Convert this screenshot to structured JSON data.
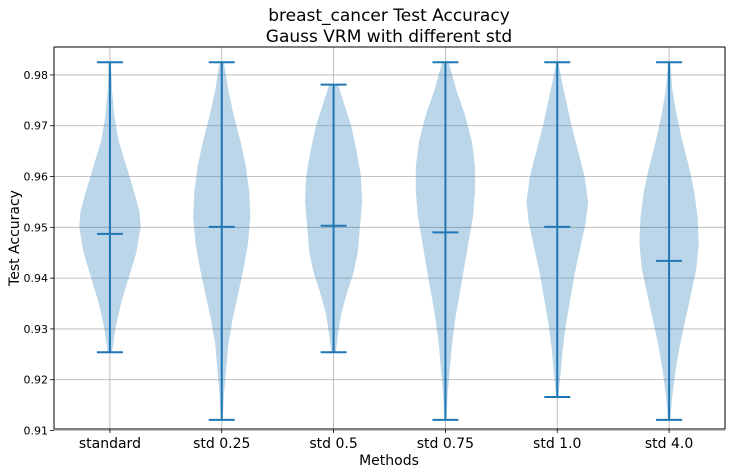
{
  "chart_data": {
    "type": "violin",
    "title": "breast_cancer Test Accuracy",
    "subtitle": "Gauss VRM with different std",
    "xlabel": "Methods",
    "ylabel": "Test Accuracy",
    "ylim": [
      0.9103,
      0.9855
    ],
    "yticks": [
      "0.91",
      "0.92",
      "0.93",
      "0.94",
      "0.95",
      "0.96",
      "0.97",
      "0.98"
    ],
    "yticks_values": [
      0.91,
      0.92,
      0.93,
      0.94,
      0.95,
      0.96,
      0.97,
      0.98
    ],
    "grid": true,
    "colors": {
      "body": "#1f77b4",
      "body_opacity": 0.3,
      "lines": "#1f77b4"
    },
    "categories": [
      "standard",
      "std 0.25",
      "std 0.5",
      "std 0.75",
      "std 1.0",
      "std 4.0"
    ],
    "series": [
      {
        "min": 0.9254,
        "max": 0.9825,
        "mean": 0.9487,
        "profile": [
          [
            0.9254,
            0.002
          ],
          [
            0.93,
            0.005
          ],
          [
            0.935,
            0.01
          ],
          [
            0.94,
            0.017
          ],
          [
            0.945,
            0.024
          ],
          [
            0.95,
            0.028
          ],
          [
            0.953,
            0.027
          ],
          [
            0.957,
            0.022
          ],
          [
            0.962,
            0.015
          ],
          [
            0.967,
            0.008
          ],
          [
            0.972,
            0.004
          ],
          [
            0.977,
            0.002
          ],
          [
            0.9825,
            0.001
          ]
        ]
      },
      {
        "min": 0.9121,
        "max": 0.9825,
        "mean": 0.9501,
        "profile": [
          [
            0.9121,
            0.001
          ],
          [
            0.917,
            0.002
          ],
          [
            0.922,
            0.004
          ],
          [
            0.927,
            0.006
          ],
          [
            0.932,
            0.01
          ],
          [
            0.937,
            0.015
          ],
          [
            0.942,
            0.02
          ],
          [
            0.947,
            0.024
          ],
          [
            0.952,
            0.026
          ],
          [
            0.957,
            0.025
          ],
          [
            0.962,
            0.022
          ],
          [
            0.967,
            0.017
          ],
          [
            0.972,
            0.011
          ],
          [
            0.977,
            0.006
          ],
          [
            0.9825,
            0.002
          ]
        ]
      },
      {
        "min": 0.9254,
        "max": 0.9781,
        "mean": 0.9503,
        "profile": [
          [
            0.9254,
            0.002
          ],
          [
            0.929,
            0.004
          ],
          [
            0.933,
            0.007
          ],
          [
            0.937,
            0.012
          ],
          [
            0.941,
            0.018
          ],
          [
            0.945,
            0.022
          ],
          [
            0.95,
            0.024
          ],
          [
            0.955,
            0.026
          ],
          [
            0.96,
            0.025
          ],
          [
            0.965,
            0.021
          ],
          [
            0.97,
            0.016
          ],
          [
            0.974,
            0.01
          ],
          [
            0.9781,
            0.004
          ]
        ]
      },
      {
        "min": 0.9121,
        "max": 0.9825,
        "mean": 0.949,
        "profile": [
          [
            0.9121,
            0.001
          ],
          [
            0.917,
            0.002
          ],
          [
            0.922,
            0.004
          ],
          [
            0.927,
            0.006
          ],
          [
            0.932,
            0.009
          ],
          [
            0.937,
            0.013
          ],
          [
            0.942,
            0.017
          ],
          [
            0.947,
            0.021
          ],
          [
            0.952,
            0.025
          ],
          [
            0.957,
            0.027
          ],
          [
            0.962,
            0.027
          ],
          [
            0.967,
            0.024
          ],
          [
            0.972,
            0.018
          ],
          [
            0.977,
            0.01
          ],
          [
            0.9825,
            0.003
          ]
        ]
      },
      {
        "min": 0.9166,
        "max": 0.9825,
        "mean": 0.9501,
        "profile": [
          [
            0.9166,
            0.001
          ],
          [
            0.921,
            0.003
          ],
          [
            0.926,
            0.005
          ],
          [
            0.931,
            0.008
          ],
          [
            0.936,
            0.012
          ],
          [
            0.941,
            0.016
          ],
          [
            0.946,
            0.021
          ],
          [
            0.951,
            0.026
          ],
          [
            0.955,
            0.028
          ],
          [
            0.96,
            0.025
          ],
          [
            0.965,
            0.019
          ],
          [
            0.97,
            0.013
          ],
          [
            0.975,
            0.008
          ],
          [
            0.979,
            0.004
          ],
          [
            0.9825,
            0.001
          ]
        ]
      },
      {
        "min": 0.9121,
        "max": 0.9825,
        "mean": 0.9434,
        "profile": [
          [
            0.9121,
            0.001
          ],
          [
            0.917,
            0.003
          ],
          [
            0.922,
            0.006
          ],
          [
            0.927,
            0.01
          ],
          [
            0.932,
            0.015
          ],
          [
            0.937,
            0.02
          ],
          [
            0.942,
            0.025
          ],
          [
            0.947,
            0.027
          ],
          [
            0.952,
            0.026
          ],
          [
            0.957,
            0.023
          ],
          [
            0.962,
            0.018
          ],
          [
            0.967,
            0.012
          ],
          [
            0.972,
            0.007
          ],
          [
            0.977,
            0.003
          ],
          [
            0.9825,
            0.001
          ]
        ]
      }
    ]
  }
}
